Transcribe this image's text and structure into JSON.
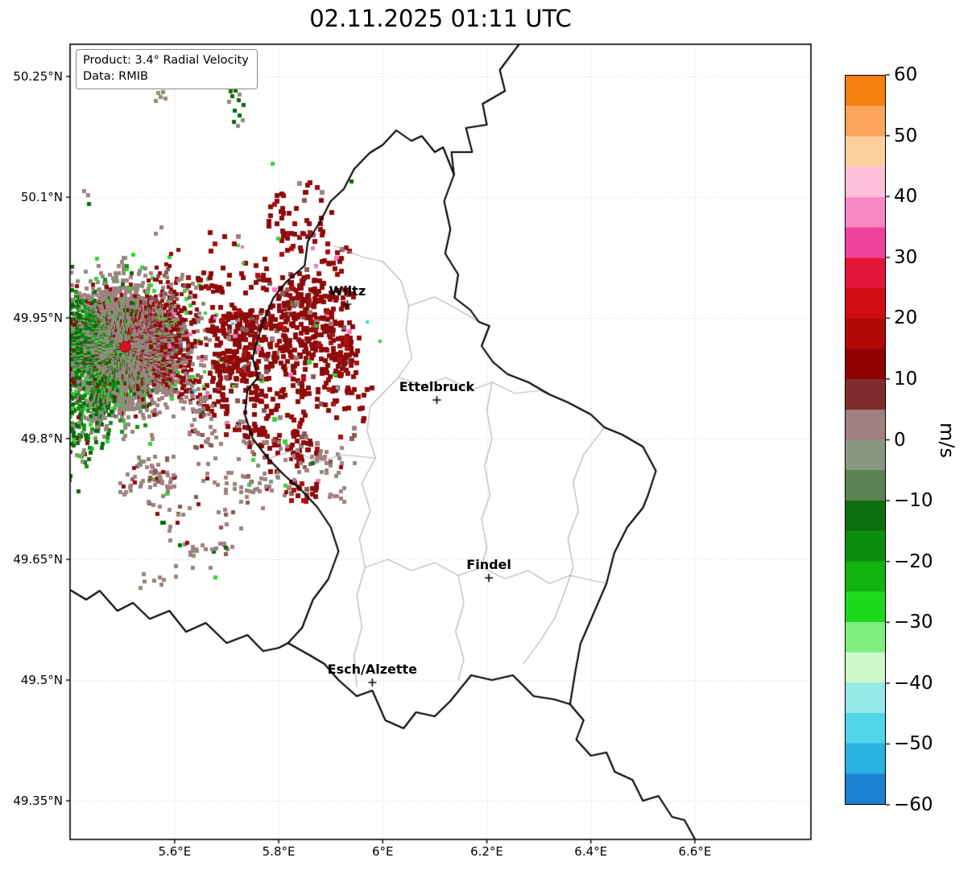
{
  "title": "02.11.2025 01:11 UTC",
  "info_box": {
    "line1": "Product: 3.4° Radial Velocity",
    "line2": "Data: RMIB"
  },
  "axes": {
    "lon_min": 5.399,
    "lon_max": 6.823,
    "lat_min": 49.302,
    "lat_max": 50.29,
    "x_ticks": [
      {
        "value": 5.6,
        "label": "5.6°E"
      },
      {
        "value": 5.8,
        "label": "5.8°E"
      },
      {
        "value": 6.0,
        "label": "6°E"
      },
      {
        "value": 6.2,
        "label": "6.2°E"
      },
      {
        "value": 6.4,
        "label": "6.4°E"
      },
      {
        "value": 6.6,
        "label": "6.6°E"
      }
    ],
    "y_ticks": [
      {
        "value": 50.25,
        "label": "50.25°N"
      },
      {
        "value": 50.1,
        "label": "50.1°N"
      },
      {
        "value": 49.95,
        "label": "49.95°N"
      },
      {
        "value": 49.8,
        "label": "49.8°N"
      },
      {
        "value": 49.65,
        "label": "49.65°N"
      },
      {
        "value": 49.5,
        "label": "49.5°N"
      },
      {
        "value": 49.35,
        "label": "49.35°N"
      }
    ]
  },
  "cities": [
    {
      "name": "Wiltz",
      "lon": 5.932,
      "lat": 49.967
    },
    {
      "name": "Ettelbruck",
      "lon": 6.104,
      "lat": 49.848
    },
    {
      "name": "Findel",
      "lon": 6.204,
      "lat": 49.627
    },
    {
      "name": "Esch/Alzette",
      "lon": 5.98,
      "lat": 49.497
    }
  ],
  "radar": {
    "site": {
      "lon": 5.505,
      "lat": 49.914
    },
    "dot_color": "#e01020",
    "field": {
      "seed": 1337,
      "palette": {
        "dark_red": "#8e0b0b",
        "red": "#b01010",
        "rosy": "#a08080",
        "rosy_dark": "#8a5858",
        "sage": "#879178",
        "dark_green": "#0b6b0b",
        "green": "#149414",
        "lime": "#35d435",
        "pink": "#f478bc",
        "cyan": "#3ed2de"
      },
      "outliers": [
        {
          "color": "sage",
          "cells": [
            [
              196,
              115
            ],
            [
              202,
              114
            ],
            [
              199,
              120
            ],
            [
              193,
              125
            ],
            [
              297,
              117
            ],
            [
              284,
              126
            ],
            [
              295,
              156
            ],
            [
              301,
              149
            ]
          ]
        },
        {
          "color": "rosy",
          "cells": [
            [
              205,
              122
            ],
            [
              104,
              237
            ],
            [
              109,
              242
            ],
            [
              200,
              282
            ],
            [
              193,
              290
            ]
          ]
        },
        {
          "color": "dark_green",
          "cells": [
            [
              286,
              113
            ],
            [
              292,
              112
            ],
            [
              288,
              119
            ],
            [
              296,
              124
            ],
            [
              302,
              130
            ],
            [
              291,
              137
            ],
            [
              297,
              143
            ],
            [
              290,
              151
            ],
            [
              110,
              253
            ],
            [
              436,
              225
            ]
          ]
        },
        {
          "color": "lime",
          "cells": [
            [
              345,
              296
            ],
            [
              338,
              203
            ]
          ]
        },
        {
          "color": "pink",
          "cells": [
            [
              388,
              308
            ],
            [
              392,
              330
            ]
          ]
        }
      ]
    }
  },
  "colorbar": {
    "label": "m/s",
    "min": -60,
    "max": 60,
    "ticks": [
      {
        "value": 60,
        "label": "60"
      },
      {
        "value": 50,
        "label": "50"
      },
      {
        "value": 40,
        "label": "40"
      },
      {
        "value": 30,
        "label": "30"
      },
      {
        "value": 20,
        "label": "20"
      },
      {
        "value": 10,
        "label": "10"
      },
      {
        "value": 0,
        "label": "0"
      },
      {
        "value": -10,
        "label": "−10"
      },
      {
        "value": -20,
        "label": "−20"
      },
      {
        "value": -30,
        "label": "−30"
      },
      {
        "value": -40,
        "label": "−40"
      },
      {
        "value": -50,
        "label": "−50"
      },
      {
        "value": -60,
        "label": "−60"
      }
    ],
    "bands": [
      {
        "from": 55,
        "to": 60,
        "color": "#f67f12"
      },
      {
        "from": 50,
        "to": 55,
        "color": "#fba55c"
      },
      {
        "from": 45,
        "to": 50,
        "color": "#fdd09e"
      },
      {
        "from": 40,
        "to": 45,
        "color": "#fbc0d8"
      },
      {
        "from": 35,
        "to": 40,
        "color": "#f888c2"
      },
      {
        "from": 30,
        "to": 35,
        "color": "#f2439c"
      },
      {
        "from": 25,
        "to": 30,
        "color": "#e41538"
      },
      {
        "from": 20,
        "to": 25,
        "color": "#cf0d12"
      },
      {
        "from": 15,
        "to": 20,
        "color": "#b20707"
      },
      {
        "from": 10,
        "to": 15,
        "color": "#8e0202"
      },
      {
        "from": 5,
        "to": 10,
        "color": "#7e2c2c"
      },
      {
        "from": 0,
        "to": 5,
        "color": "#a08080"
      },
      {
        "from": -5,
        "to": 0,
        "color": "#8a9684"
      },
      {
        "from": -10,
        "to": -5,
        "color": "#5d8355"
      },
      {
        "from": -15,
        "to": -10,
        "color": "#0d6e0d"
      },
      {
        "from": -20,
        "to": -15,
        "color": "#0e8e0e"
      },
      {
        "from": -25,
        "to": -20,
        "color": "#10b410"
      },
      {
        "from": -30,
        "to": -25,
        "color": "#1ed81e"
      },
      {
        "from": -35,
        "to": -30,
        "color": "#7fee7f"
      },
      {
        "from": -40,
        "to": -35,
        "color": "#cdf8c8"
      },
      {
        "from": -45,
        "to": -40,
        "color": "#96e9e6"
      },
      {
        "from": -50,
        "to": -45,
        "color": "#4fd5e7"
      },
      {
        "from": -55,
        "to": -50,
        "color": "#28b2e0"
      },
      {
        "from": -60,
        "to": -55,
        "color": "#1b80d0"
      }
    ]
  },
  "map_layers": {
    "country_borders": [
      [
        [
          6.262,
          50.29
        ],
        [
          6.225,
          50.258
        ],
        [
          6.235,
          50.232
        ],
        [
          6.192,
          50.216
        ],
        [
          6.2,
          50.19
        ],
        [
          6.16,
          50.186
        ],
        [
          6.172,
          50.156
        ],
        [
          6.132,
          50.156
        ],
        [
          6.137,
          50.128
        ]
      ],
      [
        [
          6.026,
          50.183
        ],
        [
          6.055,
          50.17
        ],
        [
          6.075,
          50.176
        ],
        [
          6.1,
          50.156
        ],
        [
          6.116,
          50.162
        ],
        [
          6.137,
          50.128
        ],
        [
          6.118,
          50.095
        ],
        [
          6.13,
          50.06
        ],
        [
          6.12,
          50.03
        ],
        [
          6.145,
          50.004
        ],
        [
          6.138,
          49.975
        ],
        [
          6.168,
          49.96
        ],
        [
          6.185,
          49.945
        ],
        [
          6.205,
          49.94
        ],
        [
          6.19,
          49.915
        ],
        [
          6.212,
          49.895
        ],
        [
          6.24,
          49.88
        ],
        [
          6.28,
          49.87
        ],
        [
          6.32,
          49.855
        ],
        [
          6.356,
          49.845
        ],
        [
          6.4,
          49.83
        ],
        [
          6.426,
          49.814
        ],
        [
          6.46,
          49.805
        ],
        [
          6.5,
          49.79
        ],
        [
          6.525,
          49.76
        ],
        [
          6.51,
          49.73
        ],
        [
          6.5,
          49.714
        ],
        [
          6.47,
          49.69
        ],
        [
          6.445,
          49.658
        ],
        [
          6.43,
          49.62
        ],
        [
          6.4,
          49.575
        ],
        [
          6.38,
          49.545
        ],
        [
          6.37,
          49.51
        ],
        [
          6.36,
          49.47
        ],
        [
          6.33,
          49.476
        ],
        [
          6.29,
          49.48
        ],
        [
          6.25,
          49.506
        ],
        [
          6.21,
          49.5
        ],
        [
          6.17,
          49.506
        ],
        [
          6.13,
          49.474
        ],
        [
          6.1,
          49.455
        ],
        [
          6.064,
          49.46
        ],
        [
          6.04,
          49.44
        ],
        [
          6.005,
          49.45
        ],
        [
          5.98,
          49.487
        ],
        [
          5.95,
          49.48
        ],
        [
          5.915,
          49.5
        ],
        [
          5.888,
          49.52
        ],
        [
          5.862,
          49.53
        ],
        [
          5.818,
          49.546
        ],
        [
          5.845,
          49.565
        ],
        [
          5.866,
          49.6
        ],
        [
          5.895,
          49.625
        ],
        [
          5.915,
          49.66
        ],
        [
          5.9,
          49.69
        ],
        [
          5.874,
          49.715
        ],
        [
          5.845,
          49.735
        ],
        [
          5.81,
          49.755
        ],
        [
          5.78,
          49.775
        ],
        [
          5.75,
          49.8
        ],
        [
          5.735,
          49.83
        ],
        [
          5.74,
          49.86
        ],
        [
          5.76,
          49.876
        ],
        [
          5.75,
          49.9
        ],
        [
          5.756,
          49.916
        ],
        [
          5.77,
          49.945
        ],
        [
          5.79,
          49.975
        ],
        [
          5.815,
          49.995
        ],
        [
          5.85,
          50.015
        ],
        [
          5.856,
          50.045
        ],
        [
          5.88,
          50.07
        ],
        [
          5.9,
          50.095
        ],
        [
          5.925,
          50.11
        ],
        [
          5.945,
          50.135
        ],
        [
          5.975,
          50.155
        ],
        [
          6.0,
          50.165
        ],
        [
          6.026,
          50.183
        ]
      ],
      [
        [
          5.399,
          49.612
        ],
        [
          5.43,
          49.6
        ],
        [
          5.456,
          49.611
        ],
        [
          5.49,
          49.586
        ],
        [
          5.52,
          49.596
        ],
        [
          5.552,
          49.576
        ],
        [
          5.59,
          49.586
        ],
        [
          5.622,
          49.56
        ],
        [
          5.66,
          49.571
        ],
        [
          5.7,
          49.546
        ],
        [
          5.74,
          49.556
        ],
        [
          5.77,
          49.536
        ],
        [
          5.8,
          49.54
        ],
        [
          5.818,
          49.546
        ]
      ],
      [
        [
          6.36,
          49.47
        ],
        [
          6.386,
          49.45
        ],
        [
          6.372,
          49.426
        ],
        [
          6.4,
          49.406
        ],
        [
          6.43,
          49.41
        ],
        [
          6.446,
          49.386
        ],
        [
          6.48,
          49.376
        ],
        [
          6.5,
          49.35
        ],
        [
          6.53,
          49.356
        ],
        [
          6.556,
          49.33
        ],
        [
          6.58,
          49.326
        ],
        [
          6.602,
          49.3
        ]
      ]
    ],
    "district_borders": [
      [
        [
          5.905,
          50.04
        ],
        [
          5.96,
          50.026
        ],
        [
          6.0,
          50.02
        ],
        [
          6.035,
          49.996
        ],
        [
          6.05,
          49.965
        ],
        [
          6.045,
          49.935
        ],
        [
          6.056,
          49.9
        ],
        [
          6.03,
          49.876
        ],
        [
          6.0,
          49.856
        ],
        [
          5.976,
          49.84
        ],
        [
          5.97,
          49.81
        ],
        [
          5.986,
          49.776
        ],
        [
          5.96,
          49.745
        ],
        [
          5.976,
          49.71
        ],
        [
          5.955,
          49.676
        ],
        [
          5.966,
          49.64
        ],
        [
          5.95,
          49.605
        ],
        [
          5.96,
          49.566
        ],
        [
          5.945,
          49.53
        ],
        [
          5.95,
          49.492
        ]
      ],
      [
        [
          6.03,
          49.876
        ],
        [
          6.08,
          49.866
        ],
        [
          6.12,
          49.876
        ],
        [
          6.17,
          49.86
        ],
        [
          6.21,
          49.87
        ],
        [
          6.255,
          49.856
        ],
        [
          6.3,
          49.86
        ],
        [
          6.356,
          49.845
        ]
      ],
      [
        [
          6.21,
          49.87
        ],
        [
          6.2,
          49.835
        ],
        [
          6.21,
          49.8
        ],
        [
          6.196,
          49.766
        ],
        [
          6.206,
          49.73
        ],
        [
          6.19,
          49.7
        ],
        [
          6.2,
          49.665
        ],
        [
          6.19,
          49.64
        ]
      ],
      [
        [
          5.966,
          49.64
        ],
        [
          6.01,
          49.65
        ],
        [
          6.055,
          49.636
        ],
        [
          6.1,
          49.646
        ],
        [
          6.145,
          49.63
        ],
        [
          6.19,
          49.64
        ],
        [
          6.235,
          49.626
        ],
        [
          6.28,
          49.636
        ],
        [
          6.32,
          49.62
        ],
        [
          6.36,
          49.63
        ],
        [
          6.43,
          49.62
        ]
      ],
      [
        [
          6.145,
          49.63
        ],
        [
          6.156,
          49.596
        ],
        [
          6.14,
          49.56
        ],
        [
          6.156,
          49.526
        ],
        [
          6.145,
          49.5
        ]
      ],
      [
        [
          6.426,
          49.814
        ],
        [
          6.386,
          49.78
        ],
        [
          6.366,
          49.746
        ],
        [
          6.376,
          49.71
        ],
        [
          6.356,
          49.676
        ],
        [
          6.366,
          49.64
        ],
        [
          6.35,
          49.61
        ],
        [
          6.33,
          49.576
        ],
        [
          6.3,
          49.546
        ],
        [
          6.27,
          49.52
        ]
      ],
      [
        [
          5.78,
          49.775
        ],
        [
          5.83,
          49.786
        ],
        [
          5.875,
          49.77
        ],
        [
          5.92,
          49.78
        ],
        [
          5.986,
          49.776
        ]
      ],
      [
        [
          6.05,
          49.965
        ],
        [
          6.1,
          49.976
        ],
        [
          6.146,
          49.96
        ],
        [
          6.185,
          49.945
        ]
      ]
    ]
  },
  "chart_data": {
    "type": "heatmap",
    "subtype": "doppler-radar-radial-velocity-map",
    "title": "02.11.2025 01:11 UTC",
    "annotations": [
      "Product: 3.4° Radial Velocity",
      "Data: RMIB"
    ],
    "units": "m/s",
    "value_range": [
      -60,
      60
    ],
    "colorbar_ticks": [
      60,
      50,
      40,
      30,
      20,
      10,
      0,
      -10,
      -20,
      -30,
      -40,
      -50,
      -60
    ],
    "x_axis": {
      "unit": "°E",
      "range": [
        5.399,
        6.823
      ],
      "ticks": [
        5.6,
        5.8,
        6.0,
        6.2,
        6.4,
        6.6
      ]
    },
    "y_axis": {
      "unit": "°N",
      "range": [
        49.302,
        50.29
      ],
      "ticks": [
        50.25,
        50.1,
        49.95,
        49.8,
        49.65,
        49.5,
        49.35
      ]
    },
    "radar_site": {
      "lon": 5.505,
      "lat": 49.914
    },
    "labeled_points": [
      {
        "name": "Wiltz",
        "lon": 5.932,
        "lat": 49.967
      },
      {
        "name": "Ettelbruck",
        "lon": 6.104,
        "lat": 49.848
      },
      {
        "name": "Findel",
        "lon": 6.204,
        "lat": 49.627
      },
      {
        "name": "Esch/Alzette",
        "lon": 5.98,
        "lat": 49.497
      }
    ],
    "observed_field": [
      {
        "region": "west-southwest of radar site",
        "velocity_ms": "-15 to 0 (toward radar; green / gray-green speckle reaching plot edge)"
      },
      {
        "region": "east-northeast of radar site",
        "velocity_ms": "+10 to +20 (away from radar; large dark-red blob field out to ~5.95°E)"
      },
      {
        "region": "core around radar and scattered to the south-east",
        "velocity_ms": "-5 to +8 (near zero; rosy-gray speckle and blobs down to ~49.62°N)"
      },
      {
        "region": "isolated specks far north of radar (~50.15-50.2°N)",
        "velocity_ms": "near 0 (gray-green)"
      }
    ]
  }
}
